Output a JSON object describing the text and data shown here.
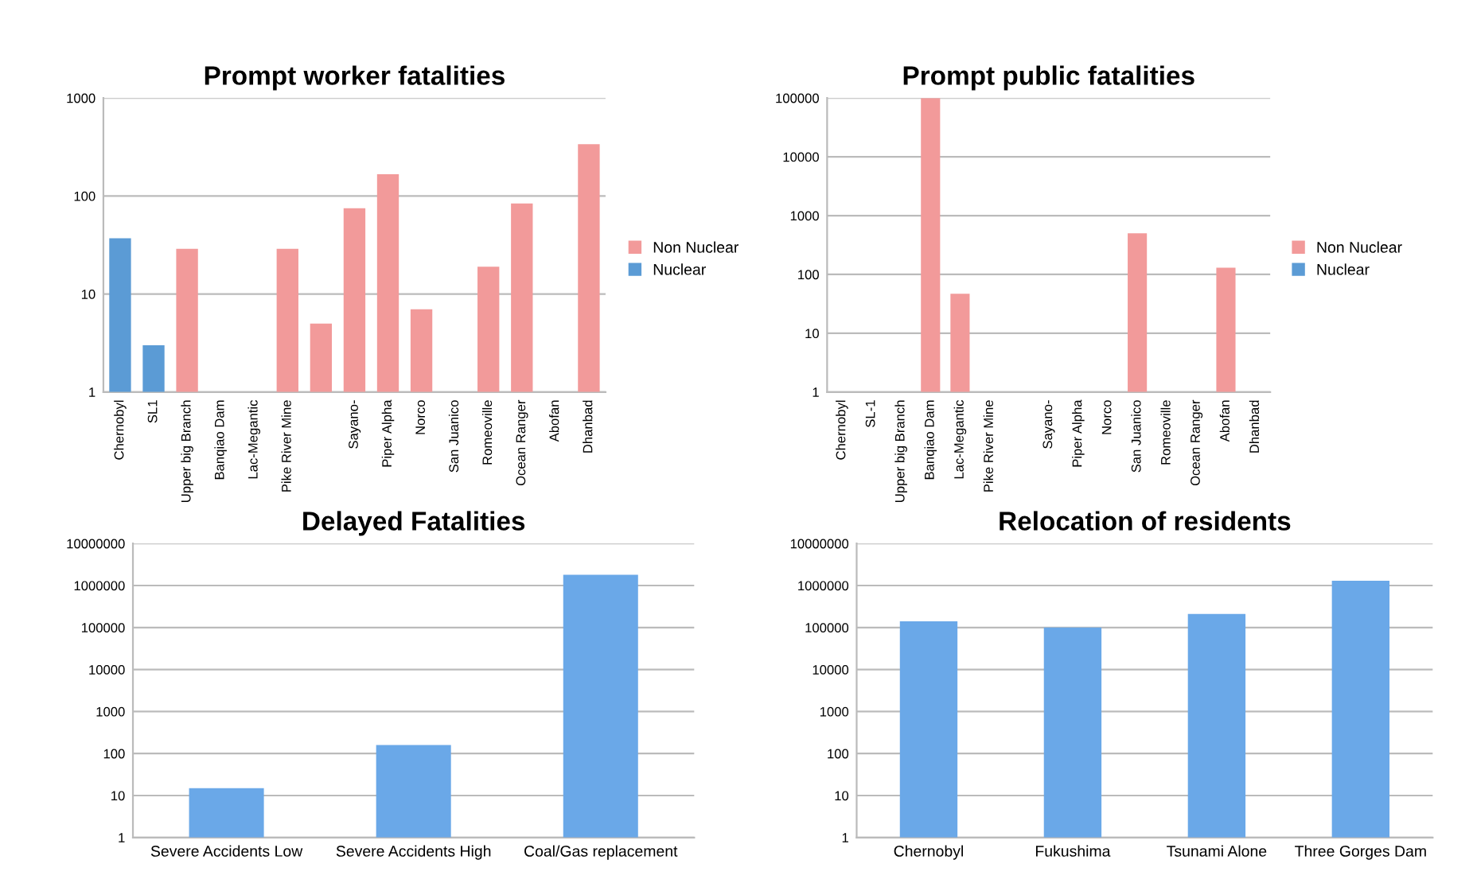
{
  "chart_data": [
    {
      "type": "bar",
      "title": "Prompt worker fatalities",
      "categories": [
        "Chernobyl",
        "SL1",
        "Upper big Branch",
        "Banqiao Dam",
        "Lac-Megantic",
        "Pike River Mine",
        null,
        "Sayano-",
        "Piper Alpha",
        "Norco",
        "San Juanico",
        "Romeoville",
        "Ocean Ranger",
        "Abofan",
        "Dhanbad"
      ],
      "series": [
        {
          "name": "Non Nuclear",
          "color": "#f29a9a",
          "values": [
            null,
            null,
            29,
            null,
            null,
            29,
            5,
            75,
            167,
            7,
            null,
            19,
            84,
            null,
            338
          ]
        },
        {
          "name": "Nuclear",
          "color": "#5b9bd5",
          "values": [
            37,
            3,
            null,
            null,
            null,
            null,
            null,
            null,
            null,
            null,
            null,
            null,
            null,
            null,
            null
          ]
        }
      ],
      "log": true,
      "ylim": [
        1,
        1000
      ],
      "yticks": [
        1,
        10,
        100,
        1000
      ],
      "grid": "y",
      "legend": "right"
    },
    {
      "type": "bar",
      "title": "Prompt public fatalities",
      "categories": [
        "Chernobyl",
        "SL-1",
        "Upper big Branch",
        "Banqiao Dam",
        "Lac-Megantic",
        "Pike River Mine",
        null,
        "Sayano-",
        "Piper Alpha",
        "Norco",
        "San Juanico",
        "Romeoville",
        "Ocean Ranger",
        "Abofan",
        "Dhanbad"
      ],
      "series": [
        {
          "name": "Non Nuclear",
          "color": "#f29a9a",
          "values": [
            null,
            null,
            null,
            100000,
            47,
            null,
            null,
            null,
            null,
            null,
            500,
            null,
            null,
            130,
            null
          ]
        },
        {
          "name": "Nuclear",
          "color": "#5b9bd5",
          "values": [
            null,
            null,
            null,
            null,
            null,
            null,
            null,
            null,
            null,
            null,
            null,
            null,
            null,
            null,
            null
          ]
        }
      ],
      "log": true,
      "ylim": [
        1,
        100000
      ],
      "yticks": [
        1,
        10,
        100,
        1000,
        10000,
        100000
      ],
      "grid": "y",
      "legend": "right"
    },
    {
      "type": "bar",
      "title": "Delayed Fatalities",
      "categories": [
        "Severe Accidents Low",
        "Severe Accidents High",
        "Coal/Gas replacement"
      ],
      "values": [
        15,
        160,
        1800000
      ],
      "color": "#6aa8e8",
      "log": true,
      "ylim": [
        1,
        10000000
      ],
      "yticks": [
        1,
        10,
        100,
        1000,
        10000,
        100000,
        1000000,
        10000000
      ],
      "grid": "y"
    },
    {
      "type": "bar",
      "title": "Relocation of residents",
      "categories": [
        "Chernobyl",
        "Fukushima",
        "Tsunami Alone",
        "Three Gorges Dam"
      ],
      "values": [
        140000,
        100000,
        210000,
        1300000
      ],
      "color": "#6aa8e8",
      "log": true,
      "ylim": [
        1,
        10000000
      ],
      "yticks": [
        1,
        10,
        100,
        1000,
        10000,
        100000,
        1000000,
        10000000
      ],
      "grid": "y"
    }
  ]
}
